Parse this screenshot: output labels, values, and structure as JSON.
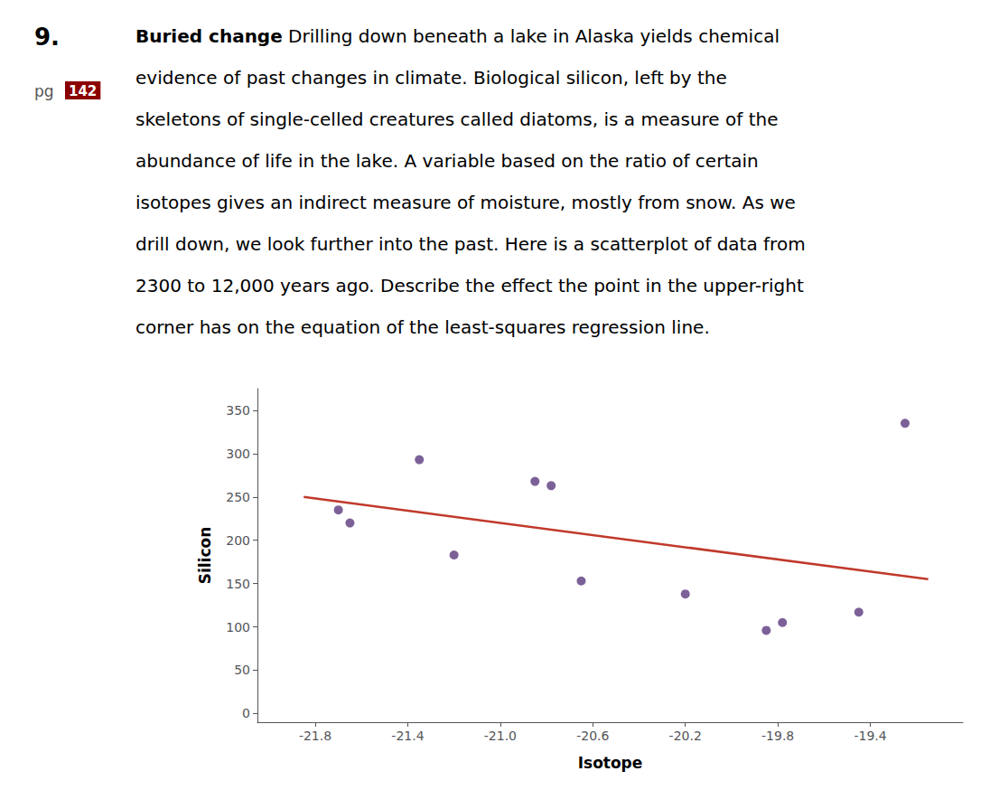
{
  "chart_data": {
    "type": "scatter",
    "xlabel": "Isotope",
    "ylabel": "Silicon",
    "series": [
      {
        "type": "scatter",
        "color": "#5b3a7e",
        "x": [
          -21.7,
          -21.65,
          -21.35,
          -21.2,
          -20.85,
          -20.78,
          -20.65,
          -20.2,
          -19.85,
          -19.78,
          -19.45,
          -19.25
        ],
        "values": [
          235,
          220,
          293,
          183,
          268,
          263,
          153,
          138,
          96,
          105,
          117,
          335
        ]
      },
      {
        "type": "line",
        "color": "#c0392b",
        "x": [
          -21.85,
          -19.15
        ],
        "values": [
          250,
          155
        ]
      }
    ],
    "xlim": [
      -22.05,
      -19.0
    ],
    "ylim": [
      -10,
      375
    ],
    "xticks": [
      -21.8,
      -21.4,
      {
        "value": -21,
        "label": "-21.0"
      },
      -20.6,
      -20.2,
      -19.8,
      -19.4
    ],
    "yticks": [
      0,
      50,
      100,
      150,
      200,
      250,
      300,
      350
    ],
    "grid": false,
    "annotations": {
      "number": "9.",
      "page_label": "pg",
      "page": "142",
      "heading": "Buried change",
      "lines": [
        "Drilling down beneath a lake in Alaska yields chemical",
        "evidence of past changes in climate. Biological silicon, left by the",
        "skeletons of single-celled creatures called diatoms, is a measure of the",
        "abundance of life in the lake. A variable based on the ratio of certain",
        "isotopes gives an indirect measure of moisture, mostly from snow. As we",
        "drill down, we look further into the past. Here is a scatterplot of data from",
        "2300 to 12,000 years ago. Describe the effect the point in the upper-right",
        "corner has on the equation of the least-squares regression line."
      ]
    }
  }
}
